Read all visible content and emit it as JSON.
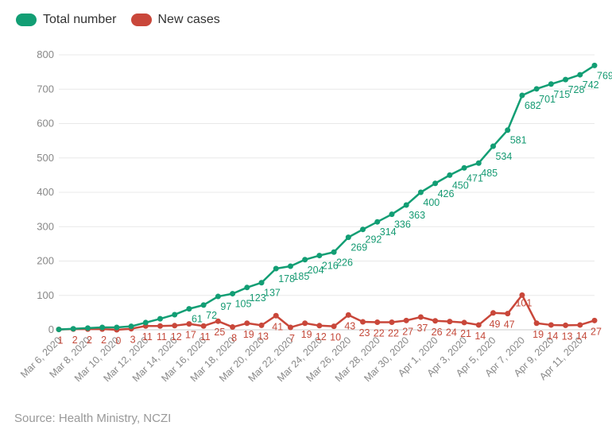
{
  "legend": {
    "total_label": "Total number",
    "new_label": "New cases"
  },
  "source": "Source: Health Ministry, NCZI",
  "colors": {
    "total": "#129e74",
    "new": "#c9473a",
    "grid": "#e8e8e8"
  },
  "chart_data": {
    "type": "line",
    "title": "",
    "xlabel": "",
    "ylabel": "",
    "ylim": [
      0,
      800
    ],
    "yticks": [
      0,
      100,
      200,
      300,
      400,
      500,
      600,
      700,
      800
    ],
    "x": [
      "Mar 6, 2020",
      "Mar 7, 2020",
      "Mar 8, 2020",
      "Mar 9, 2020",
      "Mar 10, 2020",
      "Mar 11, 2020",
      "Mar 12, 2020",
      "Mar 13, 2020",
      "Mar 14, 2020",
      "Mar 15, 2020",
      "Mar 16, 2020",
      "Mar 17, 2020",
      "Mar 18, 2020",
      "Mar 19, 2020",
      "Mar 20, 2020",
      "Mar 21, 2020",
      "Mar 22, 2020",
      "Mar 23, 2020",
      "Mar 24, 2020",
      "Mar 25, 2020",
      "Mar 26, 2020",
      "Mar 27, 2020",
      "Mar 28, 2020",
      "Mar 29, 2020",
      "Mar 30, 2020",
      "Mar 31, 2020",
      "Apr 1, 2020",
      "Apr 2, 2020",
      "Apr 3, 2020",
      "Apr 4, 2020",
      "Apr 5, 2020",
      "Apr 6, 2020",
      "Apr 7, 2020",
      "Apr 8, 2020",
      "Apr 9, 2020",
      "Apr 10, 2020",
      "Apr 11, 2020",
      "Apr 12, 2020"
    ],
    "xtick_labels": [
      "Mar 6, 2020",
      "Mar 8, 2020",
      "Mar 10, 2020",
      "Mar 12, 2020",
      "Mar 14, 2020",
      "Mar 16, 2020",
      "Mar 18, 2020",
      "Mar 20, 2020",
      "Mar 22, 2020",
      "Mar 24, 2020",
      "Mar 26, 2020",
      "Mar 28, 2020",
      "Mar 30, 2020",
      "Apr 1, 2020",
      "Apr 3, 2020",
      "Apr 5, 2020",
      "Apr 7, 2020",
      "Apr 9, 2020",
      "Apr 11, 2020"
    ],
    "series": [
      {
        "name": "Total number",
        "values": [
          1,
          3,
          5,
          7,
          7,
          10,
          21,
          32,
          44,
          61,
          72,
          97,
          105,
          123,
          137,
          178,
          185,
          204,
          216,
          226,
          269,
          292,
          314,
          336,
          363,
          400,
          426,
          450,
          471,
          485,
          534,
          581,
          682,
          701,
          715,
          728,
          742,
          769
        ],
        "labels": [
          "1",
          "3",
          "5",
          "7",
          "7",
          "10",
          "21",
          "32",
          "44",
          "61",
          "72",
          "97",
          "105",
          "123",
          "137",
          "178",
          "185",
          "204",
          "216",
          "226",
          "269",
          "292",
          "314",
          "336",
          "363",
          "400",
          "426",
          "450",
          "471",
          "485",
          "534",
          "581",
          "682",
          "701",
          "715",
          "728",
          "742",
          "769"
        ],
        "labeled": [
          false,
          false,
          false,
          false,
          false,
          false,
          false,
          false,
          false,
          true,
          true,
          true,
          true,
          true,
          true,
          true,
          true,
          true,
          true,
          true,
          true,
          true,
          true,
          true,
          true,
          true,
          true,
          true,
          true,
          true,
          true,
          true,
          true,
          true,
          true,
          true,
          true,
          true
        ]
      },
      {
        "name": "New cases",
        "values": [
          1,
          2,
          2,
          2,
          0,
          3,
          11,
          11,
          12,
          17,
          11,
          25,
          8,
          19,
          13,
          41,
          7,
          19,
          12,
          10,
          43,
          23,
          22,
          22,
          27,
          37,
          26,
          24,
          21,
          14,
          49,
          47,
          101,
          19,
          14,
          13,
          14,
          27
        ],
        "labels": [
          "1",
          "2",
          "2",
          "2",
          "0",
          "3",
          "11",
          "11",
          "12",
          "17",
          "11",
          "25",
          "8",
          "19",
          "13",
          "41",
          "7",
          "19",
          "12",
          "10",
          "43",
          "23",
          "22",
          "22",
          "27",
          "37",
          "26",
          "24",
          "21",
          "14",
          "49",
          "47",
          "101",
          "19",
          "14",
          "13",
          "14",
          "27"
        ],
        "labeled": [
          true,
          true,
          true,
          true,
          true,
          true,
          true,
          true,
          true,
          true,
          true,
          true,
          true,
          true,
          true,
          true,
          true,
          true,
          true,
          true,
          true,
          true,
          true,
          true,
          true,
          true,
          true,
          true,
          true,
          true,
          true,
          true,
          true,
          true,
          true,
          true,
          true,
          true
        ]
      }
    ]
  }
}
